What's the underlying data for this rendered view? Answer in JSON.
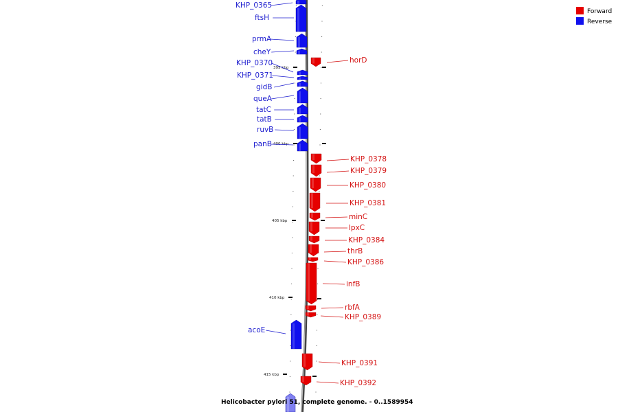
{
  "legend": {
    "items": [
      {
        "label": "Forward",
        "color": "#e60000"
      },
      {
        "label": "Reverse",
        "color": "#1010ee"
      }
    ]
  },
  "caption": "Helicobacter pylori 51, complete genome. - 0..1589954",
  "ticks": [
    {
      "label": "395 kbp",
      "kbp": 395
    },
    {
      "label": "400 kbp",
      "kbp": 400
    },
    {
      "label": "405 kbp",
      "kbp": 405
    },
    {
      "label": "410 kbp",
      "kbp": 410
    },
    {
      "label": "415 kbp",
      "kbp": 415
    }
  ],
  "genes": [
    {
      "name": "KHP_0365",
      "strand": "reverse"
    },
    {
      "name": "ftsH",
      "strand": "reverse"
    },
    {
      "name": "prmA",
      "strand": "reverse"
    },
    {
      "name": "cheY",
      "strand": "reverse"
    },
    {
      "name": "KHP_0370",
      "strand": "reverse"
    },
    {
      "name": "KHP_0371",
      "strand": "reverse"
    },
    {
      "name": "gidB",
      "strand": "reverse"
    },
    {
      "name": "queA",
      "strand": "reverse"
    },
    {
      "name": "tatC",
      "strand": "reverse"
    },
    {
      "name": "tatB",
      "strand": "reverse"
    },
    {
      "name": "ruvB",
      "strand": "reverse"
    },
    {
      "name": "panB",
      "strand": "reverse"
    },
    {
      "name": "horD",
      "strand": "forward"
    },
    {
      "name": "KHP_0378",
      "strand": "forward"
    },
    {
      "name": "KHP_0379",
      "strand": "forward"
    },
    {
      "name": "KHP_0380",
      "strand": "forward"
    },
    {
      "name": "KHP_0381",
      "strand": "forward"
    },
    {
      "name": "minC",
      "strand": "forward"
    },
    {
      "name": "lpxC",
      "strand": "forward"
    },
    {
      "name": "KHP_0384",
      "strand": "forward"
    },
    {
      "name": "thrB",
      "strand": "forward"
    },
    {
      "name": "KHP_0386",
      "strand": "forward"
    },
    {
      "name": "infB",
      "strand": "forward"
    },
    {
      "name": "rbfA",
      "strand": "forward"
    },
    {
      "name": "KHP_0389",
      "strand": "forward"
    },
    {
      "name": "acoE",
      "strand": "reverse"
    },
    {
      "name": "KHP_0391",
      "strand": "forward"
    },
    {
      "name": "KHP_0392",
      "strand": "forward"
    },
    {
      "name": "",
      "strand": "reverse"
    }
  ]
}
